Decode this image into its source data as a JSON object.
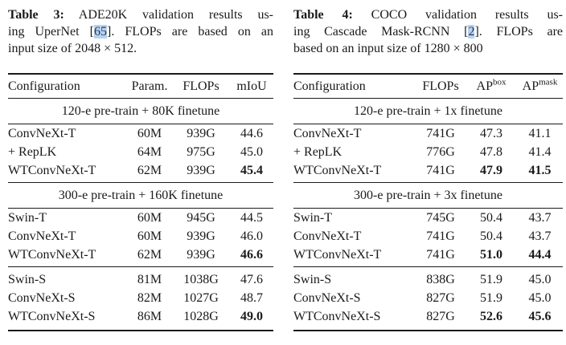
{
  "colors": {
    "citation_background": "#b9d2ee",
    "citation_text": "#1f3864",
    "rule_color": "#1a1a1a",
    "text_color": "#1a1a1a",
    "page_background": "#ffffff"
  },
  "tables": [
    {
      "caption_lines": [
        {
          "justify": true,
          "segments": [
            {
              "t": "Table 3:",
              "style": "bold"
            },
            {
              "t": " ADE20K validation results us-",
              "style": "plain"
            }
          ]
        },
        {
          "justify": true,
          "segments": [
            {
              "t": "ing UperNet [",
              "style": "plain"
            },
            {
              "t": "65",
              "style": "cite"
            },
            {
              "t": "]. FLOPs are based on an",
              "style": "plain"
            }
          ]
        },
        {
          "justify": false,
          "segments": [
            {
              "t": "input size of 2048 × 512.",
              "style": "plain"
            }
          ]
        }
      ],
      "columns": [
        {
          "label": "Configuration",
          "sup": ""
        },
        {
          "label": "Param.",
          "sup": ""
        },
        {
          "label": "FLOPs",
          "sup": ""
        },
        {
          "label": "mIoU",
          "sup": ""
        }
      ],
      "sections": [
        {
          "header": "120-e pre-train + 80K finetune",
          "rows": [
            {
              "indent": false,
              "cells": [
                {
                  "t": "ConvNeXt-T"
                },
                {
                  "t": "60M"
                },
                {
                  "t": "939G"
                },
                {
                  "t": "44.6"
                }
              ]
            },
            {
              "indent": true,
              "cells": [
                {
                  "t": "+ RepLK"
                },
                {
                  "t": "64M"
                },
                {
                  "t": "975G"
                },
                {
                  "t": "45.0"
                }
              ]
            },
            {
              "indent": false,
              "cells": [
                {
                  "t": "WTConvNeXt-T"
                },
                {
                  "t": "62M"
                },
                {
                  "t": "939G"
                },
                {
                  "t": "45.4",
                  "bold": true
                }
              ]
            }
          ]
        },
        {
          "header": "300-e pre-train + 160K finetune",
          "rows": [
            {
              "indent": false,
              "cells": [
                {
                  "t": "Swin-T"
                },
                {
                  "t": "60M"
                },
                {
                  "t": "945G"
                },
                {
                  "t": "44.5"
                }
              ]
            },
            {
              "indent": false,
              "cells": [
                {
                  "t": "ConvNeXt-T"
                },
                {
                  "t": "60M"
                },
                {
                  "t": "939G"
                },
                {
                  "t": "46.0"
                }
              ]
            },
            {
              "indent": false,
              "cells": [
                {
                  "t": "WTConvNeXt-T"
                },
                {
                  "t": "62M"
                },
                {
                  "t": "939G"
                },
                {
                  "t": "46.6",
                  "bold": true
                }
              ]
            }
          ]
        },
        {
          "header": "",
          "rows": [
            {
              "indent": false,
              "cells": [
                {
                  "t": "Swin-S"
                },
                {
                  "t": "81M"
                },
                {
                  "t": "1038G"
                },
                {
                  "t": "47.6"
                }
              ]
            },
            {
              "indent": false,
              "cells": [
                {
                  "t": "ConvNeXt-S"
                },
                {
                  "t": "82M"
                },
                {
                  "t": "1027G"
                },
                {
                  "t": "48.7"
                }
              ]
            },
            {
              "indent": false,
              "cells": [
                {
                  "t": "WTConvNeXt-S"
                },
                {
                  "t": "86M"
                },
                {
                  "t": "1028G"
                },
                {
                  "t": "49.0",
                  "bold": true
                }
              ]
            }
          ]
        }
      ]
    },
    {
      "caption_lines": [
        {
          "justify": true,
          "segments": [
            {
              "t": "Table 4:",
              "style": "bold"
            },
            {
              "t": " COCO validation results us-",
              "style": "plain"
            }
          ]
        },
        {
          "justify": true,
          "segments": [
            {
              "t": "ing Cascade Mask-RCNN [",
              "style": "plain"
            },
            {
              "t": "2",
              "style": "cite"
            },
            {
              "t": "]. FLOPs are",
              "style": "plain"
            }
          ]
        },
        {
          "justify": false,
          "segments": [
            {
              "t": "based on an input size of 1280 × 800",
              "style": "plain"
            }
          ]
        }
      ],
      "columns": [
        {
          "label": "Configuration",
          "sup": ""
        },
        {
          "label": "FLOPs",
          "sup": ""
        },
        {
          "label": "AP",
          "sup": "box"
        },
        {
          "label": "AP",
          "sup": "mask"
        }
      ],
      "sections": [
        {
          "header": "120-e pre-train + 1x finetune",
          "rows": [
            {
              "indent": false,
              "cells": [
                {
                  "t": "ConvNeXt-T"
                },
                {
                  "t": "741G"
                },
                {
                  "t": "47.3"
                },
                {
                  "t": "41.1"
                }
              ]
            },
            {
              "indent": true,
              "cells": [
                {
                  "t": "+ RepLK"
                },
                {
                  "t": "776G"
                },
                {
                  "t": "47.8"
                },
                {
                  "t": "41.4"
                }
              ]
            },
            {
              "indent": false,
              "cells": [
                {
                  "t": "WTConvNeXt-T"
                },
                {
                  "t": "741G"
                },
                {
                  "t": "47.9",
                  "bold": true
                },
                {
                  "t": "41.5",
                  "bold": true
                }
              ]
            }
          ]
        },
        {
          "header": "300-e pre-train + 3x finetune",
          "rows": [
            {
              "indent": false,
              "cells": [
                {
                  "t": "Swin-T"
                },
                {
                  "t": "745G"
                },
                {
                  "t": "50.4"
                },
                {
                  "t": "43.7"
                }
              ]
            },
            {
              "indent": false,
              "cells": [
                {
                  "t": "ConvNeXt-T"
                },
                {
                  "t": "741G"
                },
                {
                  "t": "50.4"
                },
                {
                  "t": "43.7"
                }
              ]
            },
            {
              "indent": false,
              "cells": [
                {
                  "t": "WTConvNeXt-T"
                },
                {
                  "t": "741G"
                },
                {
                  "t": "51.0",
                  "bold": true
                },
                {
                  "t": "44.4",
                  "bold": true
                }
              ]
            }
          ]
        },
        {
          "header": "",
          "rows": [
            {
              "indent": false,
              "cells": [
                {
                  "t": "Swin-S"
                },
                {
                  "t": "838G"
                },
                {
                  "t": "51.9"
                },
                {
                  "t": "45.0"
                }
              ]
            },
            {
              "indent": false,
              "cells": [
                {
                  "t": "ConvNeXt-S"
                },
                {
                  "t": "827G"
                },
                {
                  "t": "51.9"
                },
                {
                  "t": "45.0"
                }
              ]
            },
            {
              "indent": false,
              "cells": [
                {
                  "t": "WTConvNeXt-S"
                },
                {
                  "t": "827G"
                },
                {
                  "t": "52.6",
                  "bold": true
                },
                {
                  "t": "45.6",
                  "bold": true
                }
              ]
            }
          ]
        }
      ]
    }
  ]
}
